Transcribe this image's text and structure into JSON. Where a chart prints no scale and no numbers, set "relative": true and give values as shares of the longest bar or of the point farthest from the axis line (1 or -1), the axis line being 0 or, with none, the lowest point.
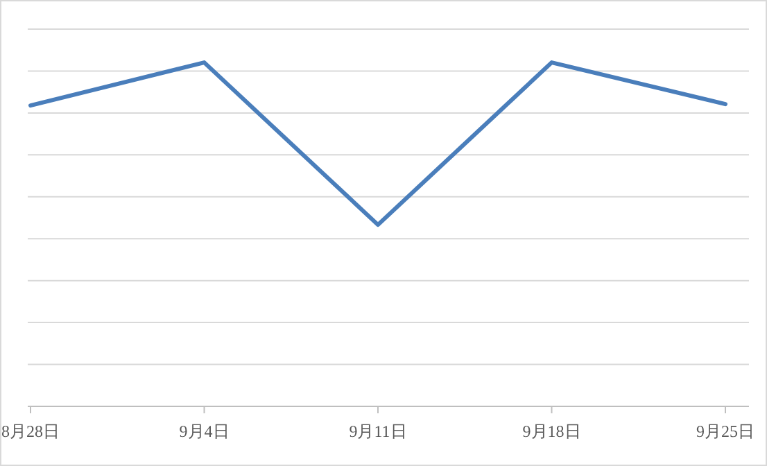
{
  "chart_data": {
    "type": "line",
    "relative": true,
    "grid": "y",
    "categories": [
      "8月28日",
      "9月4日",
      "9月11日",
      "9月18日",
      "9月25日"
    ],
    "series": [
      {
        "color": "#4a7ebb",
        "values": [
          0.875,
          1,
          0.528,
          1,
          0.879
        ]
      }
    ],
    "marker": "none",
    "line_style": "solid"
  }
}
